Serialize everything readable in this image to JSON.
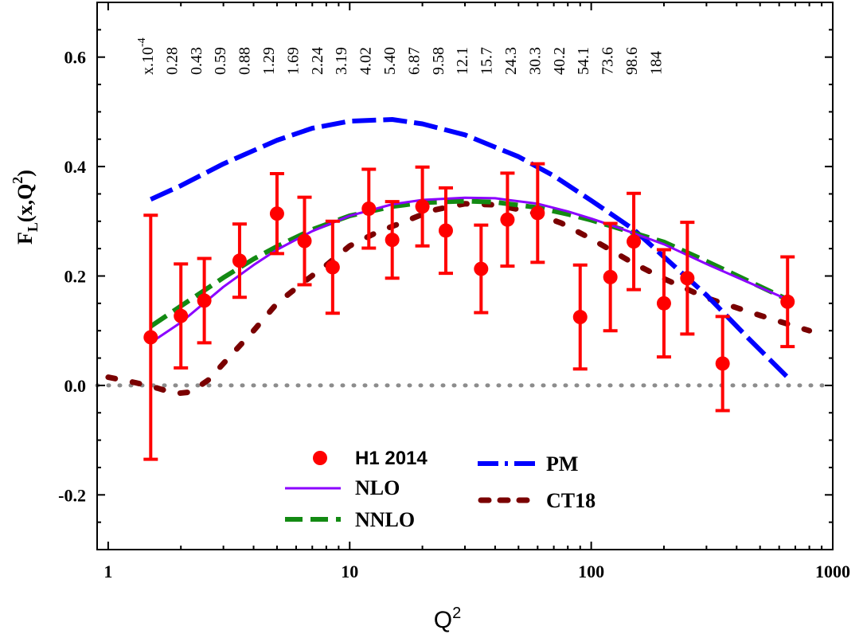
{
  "chart_data": {
    "type": "scatter",
    "xlabel": "Q",
    "xlabel_sup": "2",
    "ylabel": "F",
    "ylabel_sub": "L",
    "ylabel_rest": "(x,Q",
    "ylabel_sup": "2",
    "ylabel_end": ")",
    "x_scale": "log",
    "xlim": [
      0.9,
      1000
    ],
    "ylim": [
      -0.3,
      0.7
    ],
    "x_ticks": [
      1,
      10,
      100,
      1000
    ],
    "x_tick_labels": [
      "1",
      "10",
      "100",
      "1000"
    ],
    "y_ticks": [
      -0.2,
      0.0,
      0.2,
      0.4,
      0.6
    ],
    "y_tick_labels": [
      "-0.2",
      "0.0",
      "0.2",
      "0.4",
      "0.6"
    ],
    "grid": false,
    "legend_position": "bottom-center",
    "top_axis": {
      "prefix": "x.10",
      "prefix_sup": "-4",
      "labels": [
        "0.28",
        "0.43",
        "0.59",
        "0.88",
        "1.29",
        "1.69",
        "2.24",
        "3.19",
        "4.02",
        "5.40",
        "6.87",
        "9.58",
        "12.1",
        "15.7",
        "24.3",
        "30.3",
        "40.2",
        "54.1",
        "73.6",
        "98.6",
        "184"
      ]
    },
    "colors": {
      "data": "#ff0000",
      "nlo": "#8b00ff",
      "nnlo": "#138a13",
      "pm": "#0000ff",
      "ct18": "#7a0000",
      "zero_line": "#8c8c8c"
    },
    "series": [
      {
        "name": "H1 2014",
        "kind": "points",
        "x": [
          1.5,
          2.0,
          2.5,
          3.5,
          5.0,
          6.5,
          8.5,
          12.0,
          15.0,
          20.0,
          25.0,
          35.0,
          45.0,
          60.0,
          90.0,
          120.0,
          150.0,
          200.0,
          250.0,
          350.0,
          650.0
        ],
        "y": [
          0.088,
          0.127,
          0.155,
          0.228,
          0.314,
          0.264,
          0.216,
          0.323,
          0.266,
          0.327,
          0.283,
          0.213,
          0.303,
          0.315,
          0.125,
          0.198,
          0.263,
          0.15,
          0.196,
          0.04,
          0.153
        ],
        "err": [
          0.223,
          0.095,
          0.077,
          0.067,
          0.073,
          0.08,
          0.084,
          0.072,
          0.07,
          0.072,
          0.078,
          0.08,
          0.085,
          0.09,
          0.095,
          0.098,
          0.088,
          0.098,
          0.102,
          0.086,
          0.082
        ]
      },
      {
        "name": "NLO",
        "kind": "line",
        "x": [
          1.5,
          2,
          3,
          4,
          5,
          7,
          10,
          15,
          20,
          30,
          40,
          60,
          80,
          100,
          130,
          200,
          300,
          650
        ],
        "y": [
          0.078,
          0.115,
          0.18,
          0.22,
          0.248,
          0.282,
          0.31,
          0.331,
          0.339,
          0.343,
          0.342,
          0.332,
          0.318,
          0.305,
          0.288,
          0.258,
          0.222,
          0.157
        ]
      },
      {
        "name": "NNLO",
        "kind": "line",
        "x": [
          1.5,
          2,
          3,
          4,
          5,
          7,
          10,
          15,
          20,
          30,
          40,
          60,
          80,
          100,
          130,
          200,
          300,
          650
        ],
        "y": [
          0.108,
          0.145,
          0.197,
          0.231,
          0.254,
          0.285,
          0.31,
          0.327,
          0.334,
          0.337,
          0.335,
          0.325,
          0.313,
          0.302,
          0.287,
          0.262,
          0.227,
          0.157
        ]
      },
      {
        "name": "PM",
        "kind": "line",
        "x": [
          1.5,
          2,
          3,
          5,
          7,
          10,
          15,
          20,
          30,
          50,
          70,
          100,
          150,
          200,
          300,
          450,
          650
        ],
        "y": [
          0.34,
          0.365,
          0.405,
          0.448,
          0.47,
          0.483,
          0.486,
          0.478,
          0.458,
          0.418,
          0.383,
          0.338,
          0.285,
          0.235,
          0.165,
          0.085,
          0.015
        ]
      },
      {
        "name": "CT18",
        "kind": "line",
        "x": [
          1.0,
          1.3,
          1.6,
          1.9,
          2.2,
          2.6,
          3.0,
          4.0,
          5.0,
          6.5,
          8.0,
          10.0,
          13.0,
          17.0,
          22.0,
          30.0,
          40.0,
          55.0,
          75.0,
          100.0,
          150.0,
          200.0,
          300.0,
          500.0,
          800.0
        ],
        "y": [
          0.015,
          0.005,
          -0.005,
          -0.015,
          -0.012,
          0.01,
          0.04,
          0.1,
          0.15,
          0.19,
          0.22,
          0.255,
          0.28,
          0.3,
          0.32,
          0.332,
          0.33,
          0.318,
          0.297,
          0.268,
          0.223,
          0.195,
          0.16,
          0.128,
          0.1
        ]
      }
    ]
  }
}
